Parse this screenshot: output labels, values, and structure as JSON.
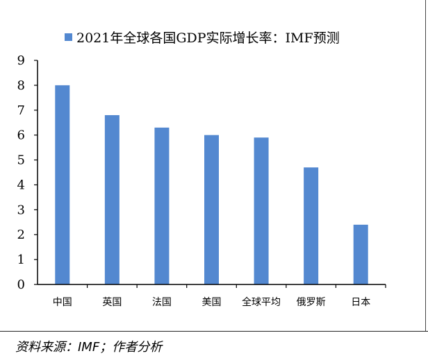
{
  "chart_data": {
    "type": "bar",
    "title": "",
    "legend": {
      "label": "2021年全球各国GDP实际增长率：IMF预测",
      "placement": "top"
    },
    "categories": [
      "中国",
      "英国",
      "法国",
      "美国",
      "全球平均",
      "俄罗斯",
      "日本"
    ],
    "series": [
      {
        "name": "2021年全球各国GDP实际增长率：IMF预测",
        "values": [
          8.0,
          6.8,
          6.3,
          6.0,
          5.9,
          4.7,
          2.4
        ],
        "color": "#5388d0"
      }
    ],
    "xlabel": "",
    "ylabel": "",
    "ylim": [
      0,
      9
    ],
    "yticks": [
      0,
      1,
      2,
      3,
      4,
      5,
      6,
      7,
      8,
      9
    ],
    "grid": false
  },
  "source": "资料来源：IMF；作者分析"
}
